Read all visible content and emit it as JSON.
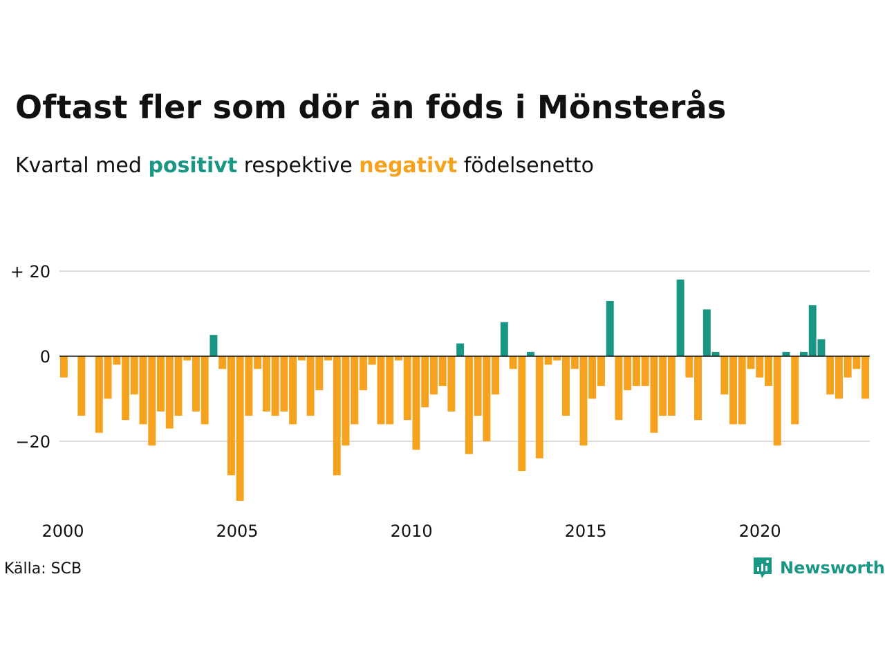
{
  "title": "Oftast fler som dör än föds i Mönsterås",
  "subtitle": {
    "before": "Kvartal med",
    "positive_word": "positivt",
    "middle": "respektive",
    "negative_word": "negativt",
    "after": "födelsenetto"
  },
  "colors": {
    "positive": "#1a9684",
    "negative": "#f5a31f",
    "grid": "#dddddd",
    "zero_line": "#111111",
    "brand": "#1a9684"
  },
  "source": "Källa: SCB",
  "brand": {
    "name": "Newsworthy",
    "icon": "newsworthy-logo-icon"
  },
  "chart_data": {
    "type": "bar",
    "title": "Oftast fler som dör än föds i Mönsterås",
    "subtitle": "Kvartal med positivt respektive negativt födelsenetto",
    "xlabel": "",
    "ylabel": "",
    "ylim": [
      -35,
      20
    ],
    "yticks": [
      {
        "value": 20,
        "label": "+ 20"
      },
      {
        "value": 0,
        "label": "0"
      },
      {
        "value": -20,
        "label": "−20"
      }
    ],
    "xticks": [
      {
        "value": 2000,
        "label": "2000"
      },
      {
        "value": 2005,
        "label": "2005"
      },
      {
        "value": 2010,
        "label": "2010"
      },
      {
        "value": 2015,
        "label": "2015"
      },
      {
        "value": 2020,
        "label": "2020"
      }
    ],
    "grid": true,
    "x_start": "2000 Q1",
    "frequency": "quarterly",
    "values": [
      -5,
      0,
      -14,
      0,
      -18,
      -10,
      -2,
      -15,
      -9,
      -16,
      -21,
      -13,
      -17,
      -14,
      -1,
      -13,
      -16,
      5,
      -3,
      -28,
      -34,
      -14,
      -3,
      -13,
      -14,
      -13,
      -16,
      -1,
      -14,
      -8,
      -1,
      -28,
      -21,
      -16,
      -8,
      -2,
      -16,
      -16,
      -1,
      -15,
      -22,
      -12,
      -9,
      -7,
      -13,
      3,
      -23,
      -14,
      -20,
      -9,
      8,
      -3,
      -27,
      1,
      -24,
      -2,
      -1,
      -14,
      -3,
      -21,
      -10,
      -7,
      13,
      -15,
      -8,
      -7,
      -7,
      -18,
      -14,
      -14,
      18,
      -5,
      -15,
      11,
      1,
      -9,
      -16,
      -16,
      -3,
      -5,
      -7,
      -21,
      1,
      -16,
      1,
      12,
      4,
      -9,
      -10,
      -5,
      -3,
      -10
    ]
  }
}
